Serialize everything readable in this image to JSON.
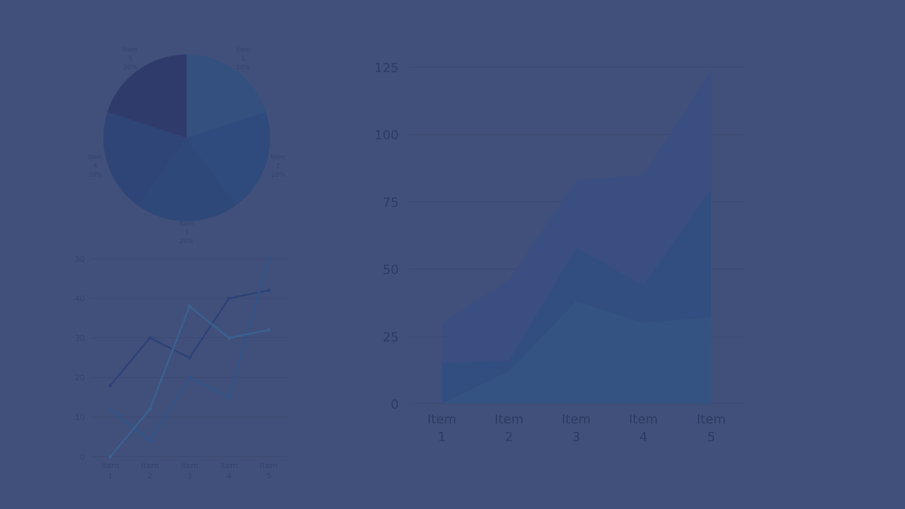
{
  "colors": {
    "background": "#41507a",
    "grid": "#3a4770",
    "axis_text": "#2d3a63",
    "pie_slices": [
      "#34507f",
      "#2f4a7c",
      "#2e4879",
      "#304577",
      "#2e3b6b"
    ],
    "line_series": [
      "#2d4278",
      "#30548a",
      "#3a6191"
    ],
    "area_series": [
      "#3b4d82",
      "#314f80",
      "#355583"
    ]
  },
  "chart_data": [
    {
      "type": "pie",
      "labels": [
        "Item\n1\n20%",
        "Item\n2\n20%",
        "Item\n3\n20%",
        "Item\n4\n20%",
        "Item\n5\n20%"
      ],
      "values": [
        20,
        20,
        20,
        20,
        20
      ]
    },
    {
      "type": "line",
      "categories": [
        "Item\n1",
        "Item\n2",
        "Item\n3",
        "Item\n4",
        "Item\n5"
      ],
      "yticks": [
        "0",
        "10",
        "20",
        "30",
        "40",
        "50"
      ],
      "ylim": [
        0,
        50
      ],
      "grid": true,
      "series": [
        {
          "values": [
            18,
            30,
            25,
            40,
            42
          ]
        },
        {
          "values": [
            12,
            4,
            20,
            15,
            50
          ]
        },
        {
          "values": [
            0,
            12,
            38,
            30,
            32
          ]
        }
      ]
    },
    {
      "type": "area",
      "stacked": false,
      "categories": [
        "Item\n1",
        "Item\n2",
        "Item\n3",
        "Item\n4",
        "Item\n5"
      ],
      "yticks": [
        "0",
        "25",
        "50",
        "75",
        "100",
        "125"
      ],
      "ylim": [
        0,
        125
      ],
      "grid": true,
      "series": [
        {
          "values": [
            30,
            46,
            83,
            85,
            124
          ]
        },
        {
          "values": [
            15,
            16,
            58,
            44,
            80
          ]
        },
        {
          "values": [
            0,
            12,
            38,
            30,
            32
          ]
        }
      ]
    }
  ]
}
